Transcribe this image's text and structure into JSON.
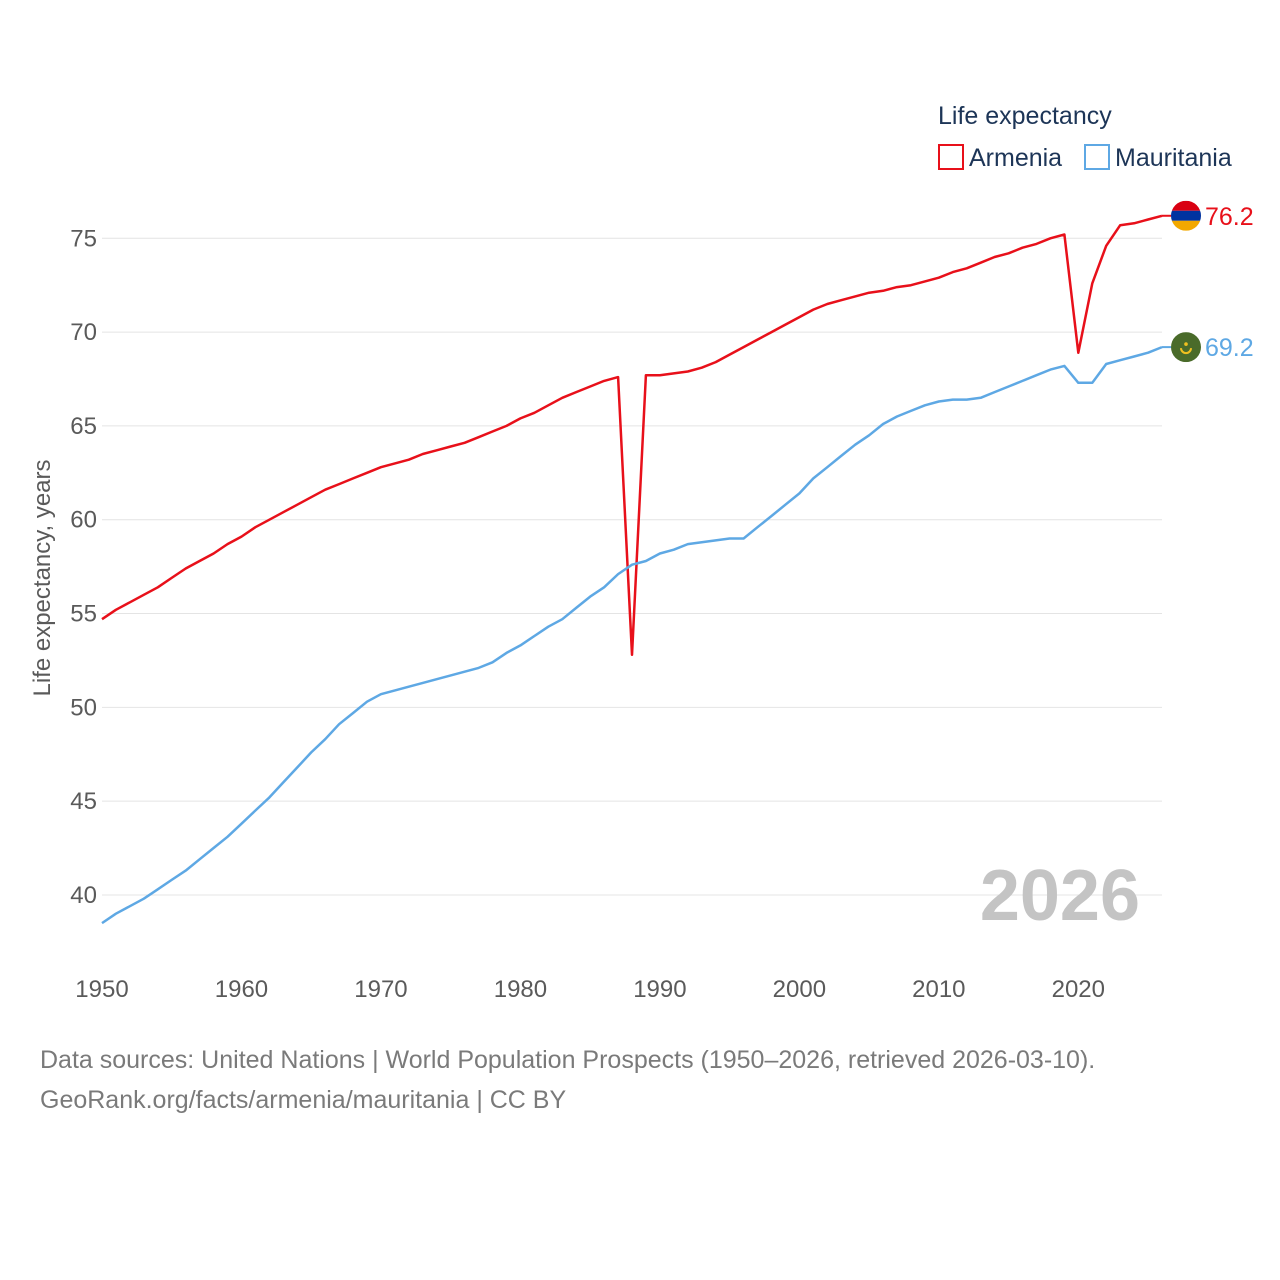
{
  "chart_data": {
    "type": "line",
    "legend_title": "Life expectancy",
    "ylabel": "Life expectancy, years",
    "xlabel": "",
    "xlim": [
      1950,
      2026
    ],
    "ylim": [
      36,
      78
    ],
    "x_ticks": [
      1950,
      1960,
      1970,
      1980,
      1990,
      2000,
      2010,
      2020
    ],
    "y_ticks": [
      40,
      45,
      50,
      55,
      60,
      65,
      70,
      75
    ],
    "grid": true,
    "legend_position": "top-right",
    "current_year": "2026",
    "x": [
      1950,
      1951,
      1952,
      1953,
      1954,
      1955,
      1956,
      1957,
      1958,
      1959,
      1960,
      1961,
      1962,
      1963,
      1964,
      1965,
      1966,
      1967,
      1968,
      1969,
      1970,
      1971,
      1972,
      1973,
      1974,
      1975,
      1976,
      1977,
      1978,
      1979,
      1980,
      1981,
      1982,
      1983,
      1984,
      1985,
      1986,
      1987,
      1988,
      1989,
      1990,
      1991,
      1992,
      1993,
      1994,
      1995,
      1996,
      1997,
      1998,
      1999,
      2000,
      2001,
      2002,
      2003,
      2004,
      2005,
      2006,
      2007,
      2008,
      2009,
      2010,
      2011,
      2012,
      2013,
      2014,
      2015,
      2016,
      2017,
      2018,
      2019,
      2020,
      2021,
      2022,
      2023,
      2024,
      2025,
      2026
    ],
    "series": [
      {
        "name": "Armenia",
        "color": "#e8101a",
        "flag": "armenia-flag",
        "end_label": "76.2",
        "values": [
          54.7,
          55.2,
          55.6,
          56.0,
          56.4,
          56.9,
          57.4,
          57.8,
          58.2,
          58.7,
          59.1,
          59.6,
          60.0,
          60.4,
          60.8,
          61.2,
          61.6,
          61.9,
          62.2,
          62.5,
          62.8,
          63.0,
          63.2,
          63.5,
          63.7,
          63.9,
          64.1,
          64.4,
          64.7,
          65.0,
          65.4,
          65.7,
          66.1,
          66.5,
          66.8,
          67.1,
          67.4,
          67.6,
          52.8,
          67.7,
          67.7,
          67.8,
          67.9,
          68.1,
          68.4,
          68.8,
          69.2,
          69.6,
          70.0,
          70.4,
          70.8,
          71.2,
          71.5,
          71.7,
          71.9,
          72.1,
          72.2,
          72.4,
          72.5,
          72.7,
          72.9,
          73.2,
          73.4,
          73.7,
          74.0,
          74.2,
          74.5,
          74.7,
          75.0,
          75.2,
          68.9,
          72.6,
          74.6,
          75.7,
          75.8,
          76.0,
          76.2
        ]
      },
      {
        "name": "Mauritania",
        "color": "#5ea8e4",
        "flag": "mauritania-flag",
        "end_label": "69.2",
        "values": [
          38.5,
          39.0,
          39.4,
          39.8,
          40.3,
          40.8,
          41.3,
          41.9,
          42.5,
          43.1,
          43.8,
          44.5,
          45.2,
          46.0,
          46.8,
          47.6,
          48.3,
          49.1,
          49.7,
          50.3,
          50.7,
          50.9,
          51.1,
          51.3,
          51.5,
          51.7,
          51.9,
          52.1,
          52.4,
          52.9,
          53.3,
          53.8,
          54.3,
          54.7,
          55.3,
          55.9,
          56.4,
          57.1,
          57.6,
          57.8,
          58.2,
          58.4,
          58.7,
          58.8,
          58.9,
          59.0,
          59.0,
          59.6,
          60.2,
          60.8,
          61.4,
          62.2,
          62.8,
          63.4,
          64.0,
          64.5,
          65.1,
          65.5,
          65.8,
          66.1,
          66.3,
          66.4,
          66.4,
          66.5,
          66.8,
          67.1,
          67.4,
          67.7,
          68.0,
          68.2,
          67.3,
          67.3,
          68.3,
          68.5,
          68.7,
          68.9,
          69.2
        ]
      }
    ]
  },
  "footer": {
    "source_line": "Data sources: United Nations | World Population Prospects (1950–2026, retrieved 2026-03-10).",
    "credit_line": "GeoRank.org/facts/armenia/mauritania | CC BY"
  }
}
